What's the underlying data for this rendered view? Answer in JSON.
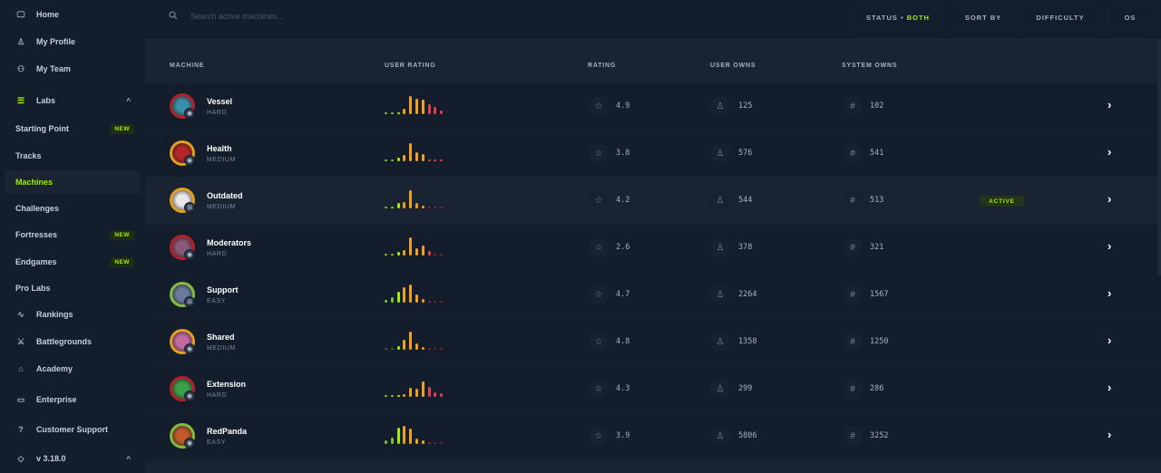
{
  "sidebar": {
    "items": [
      {
        "label": "Home",
        "icon": "monitor-icon"
      },
      {
        "label": "My Profile",
        "icon": "user-icon"
      },
      {
        "label": "My Team",
        "icon": "users-icon"
      },
      {
        "label": "Labs",
        "icon": "server-icon"
      },
      {
        "label": "Starting Point",
        "badge": "NEW"
      },
      {
        "label": "Tracks"
      },
      {
        "label": "Machines",
        "active": true
      },
      {
        "label": "Challenges"
      },
      {
        "label": "Fortresses",
        "badge": "NEW"
      },
      {
        "label": "Endgames",
        "badge": "NEW"
      },
      {
        "label": "Pro Labs"
      },
      {
        "label": "Rankings",
        "icon": "pulse-icon"
      },
      {
        "label": "Battlegrounds",
        "icon": "swords-icon"
      },
      {
        "label": "Academy",
        "icon": "graduation-cap-icon"
      },
      {
        "label": "Enterprise",
        "icon": "laptop-icon"
      },
      {
        "label": "Customer Support",
        "icon": "help-circle-icon"
      },
      {
        "label": "v 3.18.0",
        "icon": "tag-icon"
      }
    ]
  },
  "topbar": {
    "search_placeholder": "Search active machines...",
    "status_label": "STATUS",
    "status_value": "BOTH",
    "sort_by": "SORT BY",
    "difficulty": "DIFFICULTY",
    "os": "OS"
  },
  "table": {
    "headers": [
      "MACHINE",
      "USER RATING",
      "RATING",
      "USER OWNS",
      "SYSTEM OWNS"
    ],
    "active_label": "ACTIVE",
    "rows": [
      {
        "name": "Vessel",
        "difficulty": "HARD",
        "rating": "4.9",
        "user_owns": "125",
        "system_owns": "102",
        "os": "linux",
        "ring": "#b3202a",
        "avatar": "#3a8fa8",
        "dist": [
          0.1,
          0.1,
          0.1,
          0.3,
          1,
          0.85,
          0.8,
          0.55,
          0.4,
          0.2
        ]
      },
      {
        "name": "Health",
        "difficulty": "MEDIUM",
        "rating": "3.8",
        "user_owns": "576",
        "system_owns": "541",
        "os": "linux",
        "ring": "#e0a020",
        "avatar": "#b3262a",
        "dist": [
          0.1,
          0.1,
          0.2,
          0.35,
          1,
          0.5,
          0.4,
          0.1,
          0.1,
          0.1
        ]
      },
      {
        "name": "Outdated",
        "difficulty": "MEDIUM",
        "rating": "4.2",
        "user_owns": "544",
        "system_owns": "513",
        "os": "windows",
        "ring": "#e0a020",
        "avatar": "#e8e8e8",
        "active": true,
        "dist": [
          0.1,
          0.1,
          0.3,
          0.35,
          1,
          0.3,
          0.15,
          0.05,
          0.05,
          0.05
        ]
      },
      {
        "name": "Moderators",
        "difficulty": "HARD",
        "rating": "2.6",
        "user_owns": "378",
        "system_owns": "321",
        "os": "linux",
        "ring": "#b3202a",
        "avatar": "#8a5a7a",
        "dist": [
          0.1,
          0.1,
          0.2,
          0.3,
          1,
          0.4,
          0.55,
          0.25,
          0.05,
          0.05
        ]
      },
      {
        "name": "Support",
        "difficulty": "EASY",
        "rating": "4.7",
        "user_owns": "2264",
        "system_owns": "1567",
        "os": "windows",
        "ring": "#7fbf3f",
        "avatar": "#6a7a9a",
        "dist": [
          0.15,
          0.3,
          0.6,
          0.85,
          1,
          0.45,
          0.2,
          0.05,
          0.05,
          0.05
        ]
      },
      {
        "name": "Shared",
        "difficulty": "MEDIUM",
        "rating": "4.8",
        "user_owns": "1358",
        "system_owns": "1250",
        "os": "linux",
        "ring": "#e0a020",
        "avatar": "#c06aa0",
        "dist": [
          0.05,
          0.05,
          0.2,
          0.55,
          1,
          0.35,
          0.15,
          0.05,
          0.05,
          0.05
        ]
      },
      {
        "name": "Extension",
        "difficulty": "HARD",
        "rating": "4.3",
        "user_owns": "299",
        "system_owns": "286",
        "os": "linux",
        "ring": "#b3202a",
        "avatar": "#3aa04a",
        "dist": [
          0.1,
          0.1,
          0.1,
          0.15,
          0.5,
          0.45,
          0.85,
          0.55,
          0.25,
          0.2
        ]
      },
      {
        "name": "RedPanda",
        "difficulty": "EASY",
        "rating": "3.9",
        "user_owns": "5806",
        "system_owns": "3252",
        "os": "linux",
        "ring": "#7fbf3f",
        "avatar": "#c05a2a",
        "dist": [
          0.2,
          0.35,
          0.9,
          1,
          0.85,
          0.3,
          0.2,
          0.05,
          0.05,
          0.05
        ]
      }
    ]
  },
  "colors": {
    "accent": "#9fef00",
    "bar_colors": [
      "#7fbf3f",
      "#7fbf3f",
      "#9fef00",
      "#f0a020",
      "#f0a020",
      "#f0a020",
      "#f0a020",
      "#e04050",
      "#e04050",
      "#e04050"
    ]
  }
}
